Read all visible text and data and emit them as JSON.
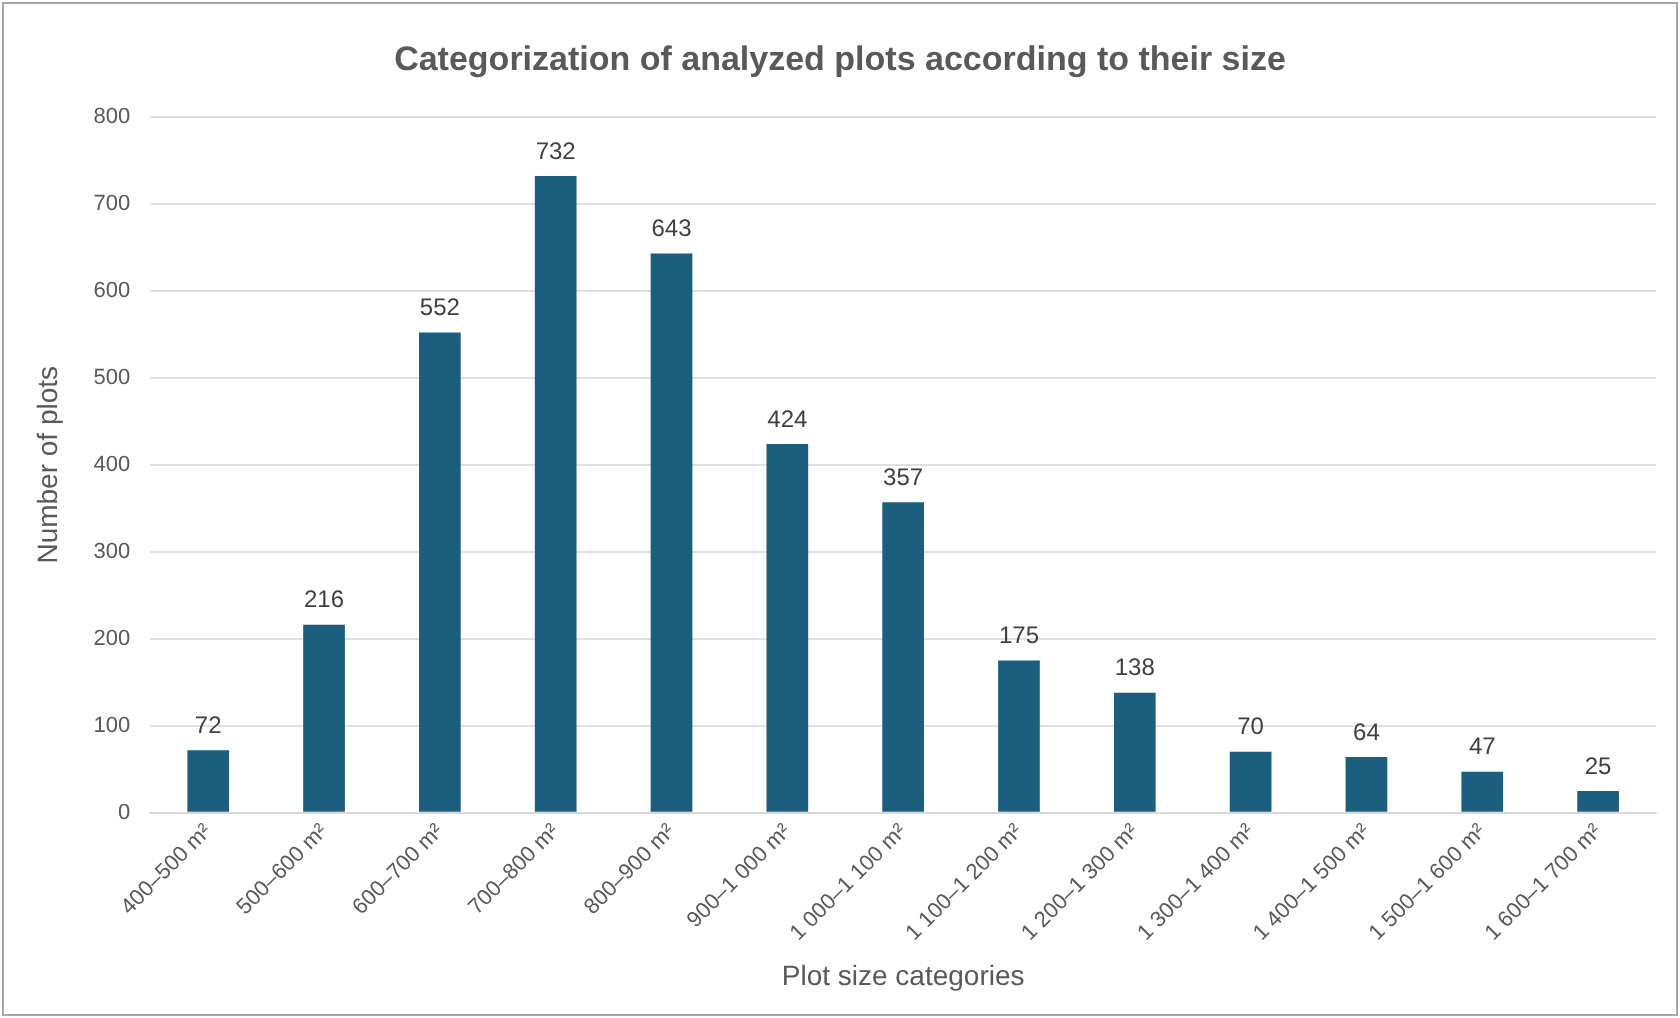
{
  "chart_data": {
    "type": "bar",
    "title": "Categorization of analyzed plots according to their size",
    "xlabel": "Plot size categories",
    "ylabel": "Number of plots",
    "categories": [
      "400–500 m²",
      "500–600 m²",
      "600–700 m²",
      "700–800 m²",
      "800–900 m²",
      "900–1 000 m²",
      "1 000–1 100 m²",
      "1 100–1 200 m²",
      "1 200–1 300 m²",
      "1 300–1 400 m²",
      "1 400–1 500 m²",
      "1 500–1 600 m²",
      "1 600–1 700 m²"
    ],
    "values": [
      72,
      216,
      552,
      732,
      643,
      424,
      357,
      175,
      138,
      70,
      64,
      47,
      25
    ],
    "color": "#1b5e7e",
    "ylim": [
      0,
      800
    ],
    "yticks": [
      0,
      100,
      200,
      300,
      400,
      500,
      600,
      700,
      800
    ],
    "grid": "y",
    "data_labels": true
  }
}
